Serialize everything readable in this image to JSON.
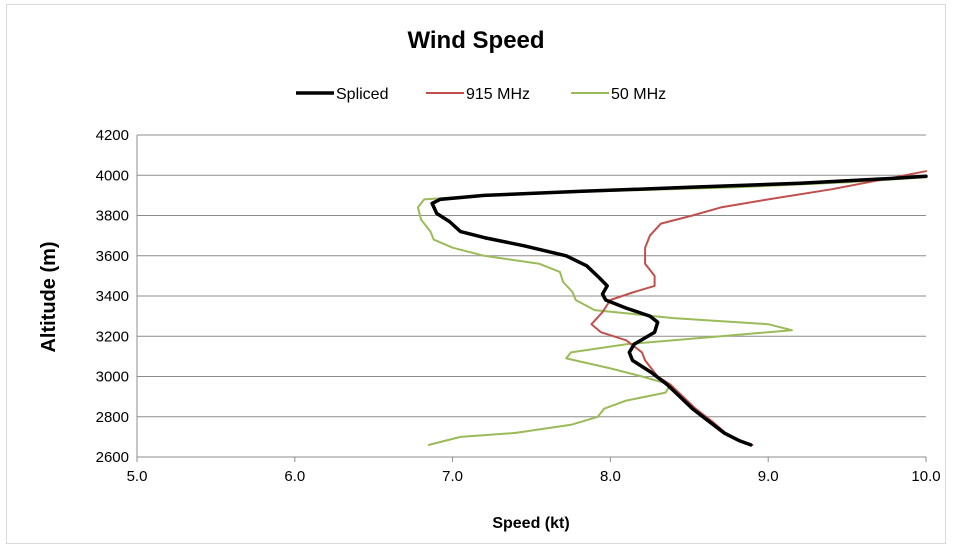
{
  "chart_data": {
    "type": "line",
    "title": "Wind Speed",
    "xlabel": "Speed (kt)",
    "ylabel": "Altitude (m)",
    "xlim": [
      5.0,
      10.0
    ],
    "ylim": [
      2600,
      4200
    ],
    "x_ticks": [
      "5.0",
      "6.0",
      "7.0",
      "8.0",
      "9.0",
      "10.0"
    ],
    "y_ticks": [
      "2600",
      "2800",
      "3000",
      "3200",
      "3400",
      "3600",
      "3800",
      "4000",
      "4200"
    ],
    "grid": "horizontal",
    "legend_position": "top",
    "series": [
      {
        "name": "Spliced",
        "color": "#000000",
        "points": [
          [
            8.89,
            2660
          ],
          [
            8.82,
            2680
          ],
          [
            8.72,
            2720
          ],
          [
            8.62,
            2780
          ],
          [
            8.52,
            2840
          ],
          [
            8.44,
            2900
          ],
          [
            8.36,
            2960
          ],
          [
            8.26,
            3020
          ],
          [
            8.14,
            3080
          ],
          [
            8.12,
            3120
          ],
          [
            8.15,
            3160
          ],
          [
            8.28,
            3220
          ],
          [
            8.3,
            3270
          ],
          [
            8.25,
            3300
          ],
          [
            8.1,
            3340
          ],
          [
            7.97,
            3380
          ],
          [
            7.95,
            3410
          ],
          [
            7.98,
            3450
          ],
          [
            7.93,
            3490
          ],
          [
            7.85,
            3550
          ],
          [
            7.72,
            3600
          ],
          [
            7.45,
            3650
          ],
          [
            7.2,
            3690
          ],
          [
            7.05,
            3720
          ],
          [
            6.98,
            3770
          ],
          [
            6.9,
            3810
          ],
          [
            6.87,
            3860
          ],
          [
            6.92,
            3880
          ],
          [
            7.2,
            3900
          ],
          [
            7.8,
            3920
          ],
          [
            8.5,
            3940
          ],
          [
            9.2,
            3960
          ],
          [
            9.8,
            3985
          ],
          [
            10.0,
            3995
          ]
        ]
      },
      {
        "name": "915 MHz",
        "color": "#c0504d",
        "points": [
          [
            8.9,
            2660
          ],
          [
            8.82,
            2680
          ],
          [
            8.73,
            2720
          ],
          [
            8.64,
            2780
          ],
          [
            8.54,
            2840
          ],
          [
            8.46,
            2900
          ],
          [
            8.38,
            2960
          ],
          [
            8.3,
            3000
          ],
          [
            8.22,
            3080
          ],
          [
            8.2,
            3120
          ],
          [
            8.1,
            3180
          ],
          [
            7.94,
            3220
          ],
          [
            7.88,
            3260
          ],
          [
            7.95,
            3320
          ],
          [
            8.0,
            3380
          ],
          [
            8.15,
            3420
          ],
          [
            8.28,
            3450
          ],
          [
            8.28,
            3500
          ],
          [
            8.22,
            3560
          ],
          [
            8.22,
            3640
          ],
          [
            8.25,
            3700
          ],
          [
            8.32,
            3760
          ],
          [
            8.52,
            3800
          ],
          [
            8.7,
            3840
          ],
          [
            9.0,
            3880
          ],
          [
            9.4,
            3930
          ],
          [
            9.8,
            3990
          ],
          [
            10.0,
            4020
          ]
        ]
      },
      {
        "name": "50 MHz",
        "color": "#9bbb59",
        "points": [
          [
            6.85,
            2660
          ],
          [
            7.05,
            2700
          ],
          [
            7.4,
            2720
          ],
          [
            7.75,
            2760
          ],
          [
            7.92,
            2800
          ],
          [
            7.96,
            2840
          ],
          [
            8.1,
            2880
          ],
          [
            8.35,
            2920
          ],
          [
            8.38,
            2960
          ],
          [
            8.2,
            3000
          ],
          [
            8.0,
            3040
          ],
          [
            7.72,
            3090
          ],
          [
            7.75,
            3120
          ],
          [
            8.1,
            3160
          ],
          [
            8.7,
            3200
          ],
          [
            9.15,
            3230
          ],
          [
            9.0,
            3260
          ],
          [
            8.4,
            3290
          ],
          [
            7.9,
            3330
          ],
          [
            7.78,
            3380
          ],
          [
            7.76,
            3420
          ],
          [
            7.7,
            3470
          ],
          [
            7.68,
            3520
          ],
          [
            7.55,
            3560
          ],
          [
            7.2,
            3600
          ],
          [
            7.0,
            3640
          ],
          [
            6.88,
            3680
          ],
          [
            6.86,
            3720
          ],
          [
            6.8,
            3780
          ],
          [
            6.78,
            3840
          ],
          [
            6.82,
            3880
          ],
          [
            7.2,
            3900
          ],
          [
            7.9,
            3920
          ],
          [
            8.8,
            3940
          ],
          [
            9.5,
            3965
          ],
          [
            10.0,
            3990
          ]
        ]
      }
    ]
  }
}
